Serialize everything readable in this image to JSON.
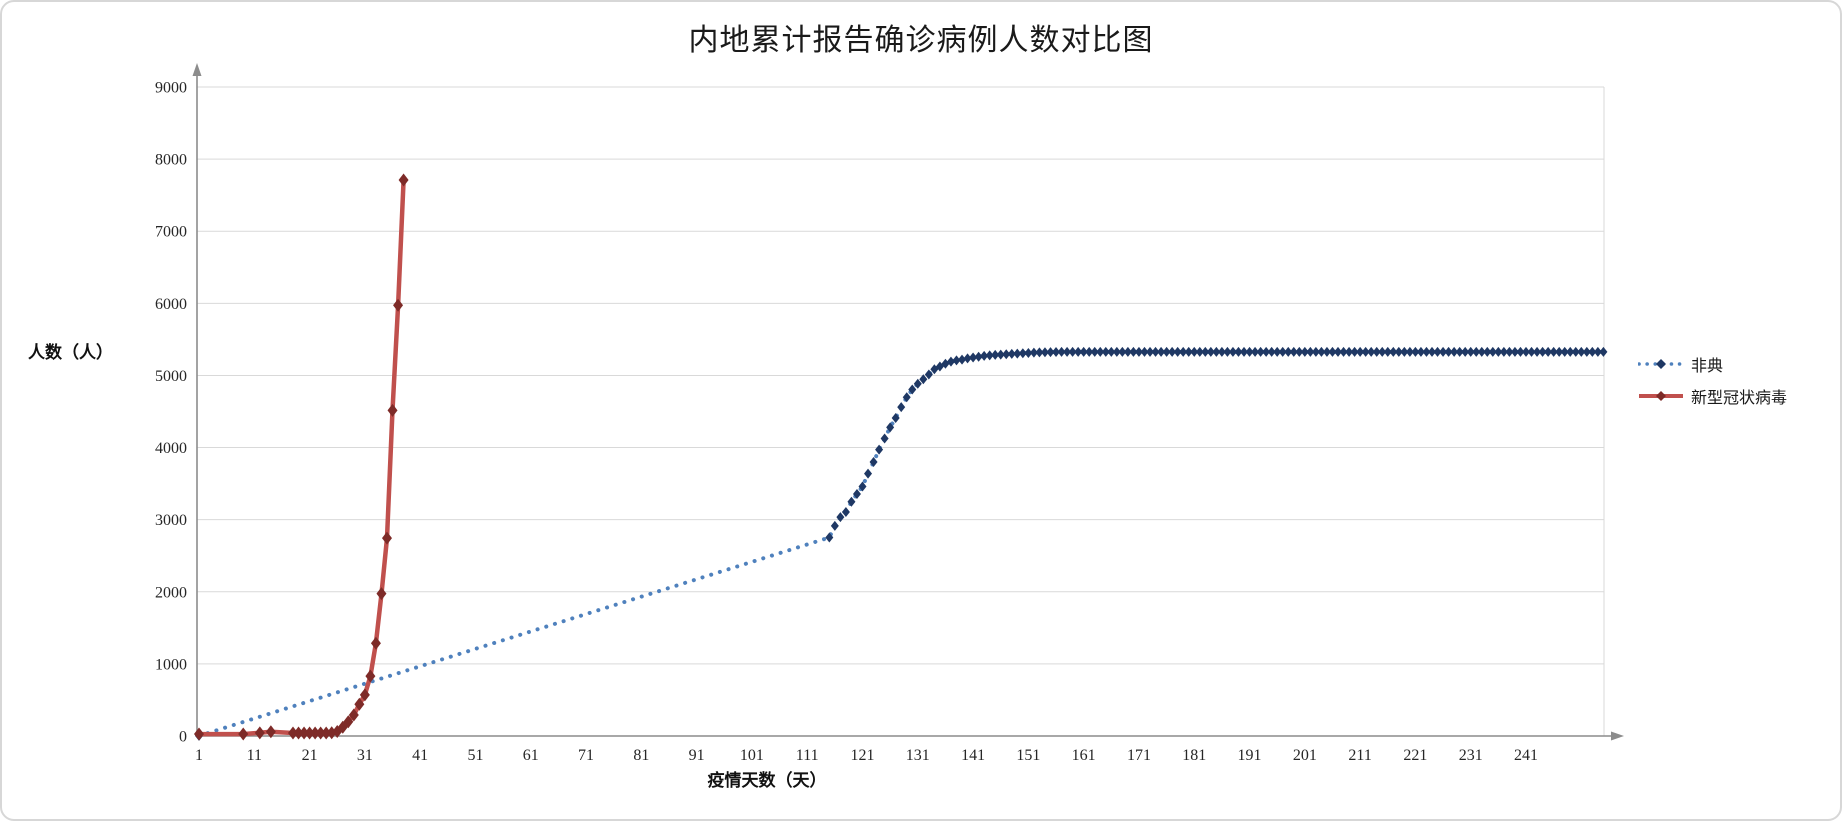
{
  "chart_data": {
    "type": "line",
    "title": "内地累计报告确诊病例人数对比图",
    "xlabel": "疫情天数（天）",
    "ylabel": "人数（人）",
    "ylim": [
      0,
      9000
    ],
    "xlim": [
      1,
      256
    ],
    "y_ticks": [
      0,
      1000,
      2000,
      3000,
      4000,
      5000,
      6000,
      7000,
      8000,
      9000
    ],
    "x_ticks": [
      1,
      11,
      21,
      31,
      41,
      51,
      61,
      71,
      81,
      91,
      101,
      111,
      121,
      131,
      141,
      151,
      161,
      171,
      181,
      191,
      201,
      211,
      221,
      231,
      241
    ],
    "grid": "horizontal",
    "legend_position": "right",
    "colors": {
      "background": "#FFFFFF",
      "grid": "#D9D9D9",
      "axis": "#8C8C8C",
      "text": "#262626"
    },
    "series": [
      {
        "name": "非典",
        "line_color": "#4F81BD",
        "marker_color": "#1F3864",
        "line_style": "dotted",
        "marker": "diamond",
        "points": [
          [
            1,
            1
          ],
          [
            115,
            2753
          ],
          [
            116,
            2914
          ],
          [
            117,
            3035
          ],
          [
            118,
            3106
          ],
          [
            119,
            3249
          ],
          [
            120,
            3356
          ],
          [
            121,
            3460
          ],
          [
            122,
            3638
          ],
          [
            123,
            3799
          ],
          [
            124,
            3971
          ],
          [
            125,
            4125
          ],
          [
            126,
            4280
          ],
          [
            127,
            4409
          ],
          [
            128,
            4560
          ],
          [
            129,
            4698
          ],
          [
            130,
            4805
          ],
          [
            131,
            4884
          ],
          [
            132,
            4948
          ],
          [
            133,
            5013
          ],
          [
            134,
            5086
          ],
          [
            135,
            5124
          ],
          [
            136,
            5163
          ],
          [
            137,
            5191
          ],
          [
            138,
            5209
          ],
          [
            139,
            5220
          ],
          [
            140,
            5236
          ],
          [
            141,
            5248
          ],
          [
            142,
            5260
          ],
          [
            143,
            5271
          ],
          [
            144,
            5279
          ],
          [
            145,
            5285
          ],
          [
            146,
            5289
          ],
          [
            147,
            5294
          ],
          [
            148,
            5299
          ],
          [
            149,
            5303
          ],
          [
            150,
            5308
          ],
          [
            151,
            5312
          ],
          [
            152,
            5316
          ],
          [
            153,
            5320
          ],
          [
            154,
            5322
          ],
          [
            155,
            5324
          ],
          [
            156,
            5325
          ],
          [
            157,
            5326
          ],
          [
            158,
            5327
          ],
          [
            159,
            5327
          ],
          [
            160,
            5327
          ],
          [
            161,
            5327
          ],
          [
            162,
            5327
          ],
          [
            163,
            5327
          ],
          [
            164,
            5327
          ],
          [
            165,
            5327
          ],
          [
            166,
            5327
          ],
          [
            167,
            5327
          ],
          [
            168,
            5327
          ],
          [
            169,
            5327
          ],
          [
            170,
            5327
          ],
          [
            171,
            5327
          ],
          [
            172,
            5327
          ],
          [
            173,
            5327
          ],
          [
            174,
            5327
          ],
          [
            175,
            5327
          ],
          [
            176,
            5327
          ],
          [
            177,
            5327
          ],
          [
            178,
            5327
          ],
          [
            179,
            5327
          ],
          [
            180,
            5327
          ],
          [
            181,
            5327
          ],
          [
            182,
            5327
          ],
          [
            183,
            5327
          ],
          [
            184,
            5327
          ],
          [
            185,
            5327
          ],
          [
            186,
            5327
          ],
          [
            187,
            5327
          ],
          [
            188,
            5327
          ],
          [
            189,
            5327
          ],
          [
            190,
            5327
          ],
          [
            191,
            5327
          ],
          [
            192,
            5327
          ],
          [
            193,
            5327
          ],
          [
            194,
            5327
          ],
          [
            195,
            5327
          ],
          [
            196,
            5327
          ],
          [
            197,
            5327
          ],
          [
            198,
            5327
          ],
          [
            199,
            5327
          ],
          [
            200,
            5327
          ],
          [
            201,
            5327
          ],
          [
            202,
            5327
          ],
          [
            203,
            5327
          ],
          [
            204,
            5327
          ],
          [
            205,
            5327
          ],
          [
            206,
            5327
          ],
          [
            207,
            5327
          ],
          [
            208,
            5327
          ],
          [
            209,
            5327
          ],
          [
            210,
            5327
          ],
          [
            211,
            5327
          ],
          [
            212,
            5327
          ],
          [
            213,
            5327
          ],
          [
            214,
            5327
          ],
          [
            215,
            5327
          ],
          [
            216,
            5327
          ],
          [
            217,
            5327
          ],
          [
            218,
            5327
          ],
          [
            219,
            5327
          ],
          [
            220,
            5327
          ],
          [
            221,
            5327
          ],
          [
            222,
            5327
          ],
          [
            223,
            5327
          ],
          [
            224,
            5327
          ],
          [
            225,
            5327
          ],
          [
            226,
            5327
          ],
          [
            227,
            5327
          ],
          [
            228,
            5327
          ],
          [
            229,
            5327
          ],
          [
            230,
            5327
          ],
          [
            231,
            5327
          ],
          [
            232,
            5327
          ],
          [
            233,
            5327
          ],
          [
            234,
            5327
          ],
          [
            235,
            5327
          ],
          [
            236,
            5327
          ],
          [
            237,
            5327
          ],
          [
            238,
            5327
          ],
          [
            239,
            5327
          ],
          [
            240,
            5327
          ],
          [
            241,
            5327
          ],
          [
            242,
            5327
          ],
          [
            243,
            5327
          ],
          [
            244,
            5327
          ],
          [
            245,
            5327
          ],
          [
            246,
            5327
          ],
          [
            247,
            5327
          ],
          [
            248,
            5327
          ],
          [
            249,
            5327
          ],
          [
            250,
            5327
          ],
          [
            251,
            5327
          ],
          [
            252,
            5327
          ],
          [
            253,
            5327
          ],
          [
            254,
            5327
          ],
          [
            255,
            5327
          ]
        ]
      },
      {
        "name": "新型冠状病毒",
        "line_color": "#C0504D",
        "marker_color": "#7E2B28",
        "line_style": "solid",
        "marker": "diamond",
        "points": [
          [
            1,
            27
          ],
          [
            9,
            27
          ],
          [
            12,
            44
          ],
          [
            14,
            59
          ],
          [
            18,
            41
          ],
          [
            19,
            41
          ],
          [
            20,
            41
          ],
          [
            21,
            41
          ],
          [
            22,
            41
          ],
          [
            23,
            41
          ],
          [
            24,
            41
          ],
          [
            25,
            45
          ],
          [
            26,
            62
          ],
          [
            27,
            121
          ],
          [
            28,
            198
          ],
          [
            29,
            291
          ],
          [
            30,
            440
          ],
          [
            31,
            571
          ],
          [
            32,
            830
          ],
          [
            33,
            1287
          ],
          [
            34,
            1975
          ],
          [
            35,
            2744
          ],
          [
            36,
            4515
          ],
          [
            37,
            5974
          ],
          [
            38,
            7711
          ]
        ]
      }
    ]
  }
}
